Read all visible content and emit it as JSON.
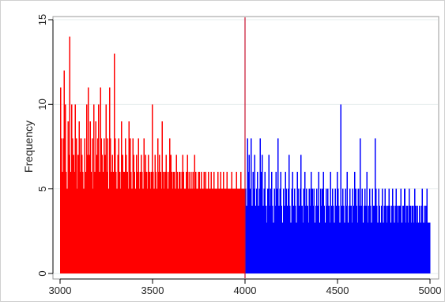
{
  "chart_data": {
    "type": "bar",
    "title": "",
    "xlabel": "",
    "ylabel": "Frequency",
    "xlim": [
      3000,
      5000
    ],
    "ylim": [
      0,
      15
    ],
    "x_ticks": [
      3000,
      3500,
      4000,
      4500,
      5000
    ],
    "y_ticks": [
      0,
      5,
      10,
      15
    ],
    "grid": "horizontal",
    "cutoff": {
      "x": 4000,
      "color": "#c8102e"
    },
    "colors": {
      "below_cutoff": "#ff0000",
      "above_cutoff": "#0000ff"
    },
    "series": [
      {
        "x_start": 3000,
        "x_step": 5,
        "values": [
          11,
          8,
          6,
          8,
          12,
          10,
          6,
          5,
          9,
          7,
          14,
          6,
          10,
          8,
          7,
          6,
          10,
          8,
          5,
          7,
          9,
          6,
          8,
          7,
          6,
          5,
          8,
          6,
          10,
          7,
          11,
          7,
          9,
          6,
          8,
          5,
          10,
          6,
          9,
          7,
          8,
          10,
          6,
          11,
          8,
          7,
          6,
          8,
          7,
          10,
          6,
          8,
          5,
          11,
          8,
          6,
          7,
          6,
          13,
          8,
          6,
          5,
          7,
          8,
          6,
          5,
          9,
          7,
          6,
          6,
          8,
          7,
          6,
          5,
          9,
          8,
          6,
          5,
          8,
          7,
          6,
          5,
          7,
          6,
          8,
          5,
          6,
          7,
          6,
          5,
          8,
          6,
          7,
          6,
          5,
          7,
          6,
          5,
          6,
          10,
          6,
          5,
          7,
          6,
          5,
          8,
          6,
          7,
          6,
          5,
          9,
          6,
          5,
          6,
          7,
          6,
          5,
          6,
          8,
          7,
          6,
          5,
          6,
          6,
          5,
          7,
          6,
          5,
          6,
          6,
          5,
          6,
          7,
          6,
          5,
          5,
          6,
          7,
          5,
          6,
          5,
          6,
          5,
          6,
          5,
          7,
          6,
          5,
          5,
          6,
          6,
          5,
          6,
          5,
          5,
          6,
          5,
          6,
          5,
          5,
          6,
          5,
          5,
          6,
          5,
          5,
          6,
          5,
          5,
          5,
          6,
          5,
          5,
          6,
          5,
          5,
          6,
          5,
          5,
          5,
          6,
          5,
          5,
          5,
          5,
          6,
          5,
          5,
          5,
          5,
          6,
          5,
          5,
          5,
          5,
          6,
          5,
          5,
          5,
          5
        ]
      },
      {
        "x_start": 4000,
        "x_step": 5,
        "values": [
          5,
          4,
          8,
          6,
          7,
          5,
          8,
          4,
          6,
          5,
          7,
          4,
          5,
          6,
          4,
          5,
          8,
          6,
          7,
          4,
          5,
          6,
          4,
          3,
          5,
          7,
          4,
          5,
          6,
          4,
          3,
          5,
          4,
          6,
          5,
          8,
          4,
          5,
          6,
          4,
          3,
          5,
          4,
          6,
          5,
          4,
          5,
          7,
          4,
          3,
          5,
          6,
          4,
          5,
          4,
          3,
          6,
          5,
          4,
          5,
          7,
          4,
          3,
          5,
          6,
          4,
          5,
          4,
          3,
          5,
          4,
          6,
          5,
          4,
          5,
          3,
          4,
          5,
          4,
          6,
          3,
          5,
          4,
          5,
          6,
          4,
          3,
          5,
          4,
          5,
          4,
          3,
          6,
          4,
          5,
          4,
          3,
          5,
          4,
          6,
          5,
          4,
          3,
          10,
          4,
          5,
          4,
          3,
          5,
          4,
          6,
          3,
          4,
          5,
          4,
          3,
          5,
          4,
          6,
          5,
          4,
          3,
          5,
          4,
          8,
          4,
          5,
          3,
          4,
          5,
          4,
          6,
          3,
          4,
          5,
          4,
          3,
          5,
          4,
          4,
          8,
          5,
          4,
          3,
          5,
          4,
          3,
          4,
          5,
          3,
          4,
          5,
          4,
          3,
          4,
          5,
          4,
          3,
          4,
          5,
          4,
          3,
          4,
          5,
          4,
          3,
          4,
          4,
          5,
          3,
          4,
          4,
          5,
          3,
          4,
          4,
          3,
          5,
          4,
          3,
          4,
          4,
          3,
          5,
          4,
          3,
          4,
          3,
          4,
          3,
          4,
          5,
          3,
          4,
          3,
          4,
          5,
          3,
          3,
          3
        ]
      }
    ]
  }
}
